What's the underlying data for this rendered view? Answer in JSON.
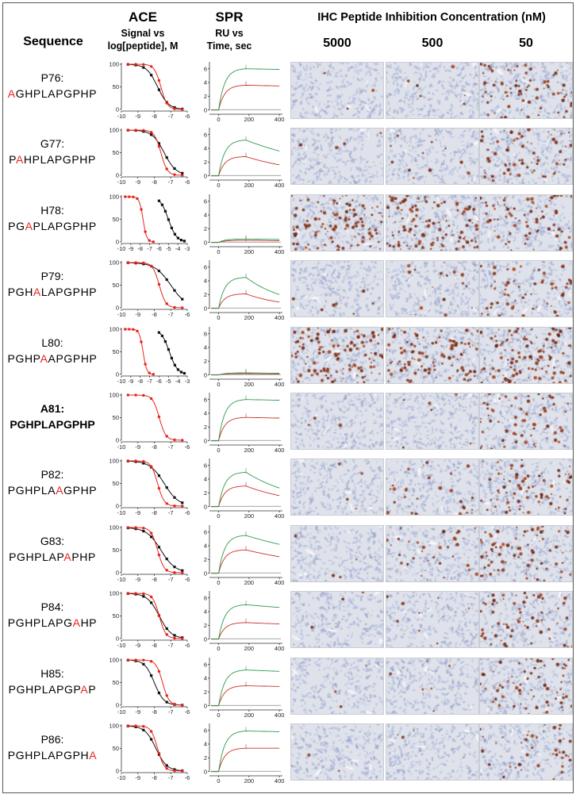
{
  "headers": {
    "sequence": "Sequence",
    "ace_title": "ACE",
    "ace_sub1": "Signal vs",
    "ace_sub2": "log[peptide], M",
    "spr_title": "SPR",
    "spr_sub1": "RU vs",
    "spr_sub2": "Time, sec",
    "ihc_title": "IHC Peptide Inhibition Concentration (nM)",
    "concentrations": [
      "5000",
      "500",
      "50"
    ]
  },
  "rows": [
    {
      "name": "P76:",
      "pre": "",
      "mut": "A",
      "post": "GHPLAPGPHP",
      "bold": false
    },
    {
      "name": "G77:",
      "pre": "P",
      "mut": "A",
      "post": "HPLAPGPHP",
      "bold": false
    },
    {
      "name": "H78:",
      "pre": "PG",
      "mut": "A",
      "post": "PLAPGPHP",
      "bold": false
    },
    {
      "name": "P79:",
      "pre": "PGH",
      "mut": "A",
      "post": "LAPGPHP",
      "bold": false
    },
    {
      "name": "L80:",
      "pre": "PGHP",
      "mut": "A",
      "post": "APGPHP",
      "bold": false
    },
    {
      "name": "A81:",
      "pre": "PGHPLAPGPHP",
      "mut": "",
      "post": "",
      "bold": true
    },
    {
      "name": "P82:",
      "pre": "PGHPLA",
      "mut": "A",
      "post": "GPHP",
      "bold": false
    },
    {
      "name": "G83:",
      "pre": "PGHPLAP",
      "mut": "A",
      "post": "PHP",
      "bold": false
    },
    {
      "name": "P84:",
      "pre": "PGHPLAPG",
      "mut": "A",
      "post": "HP",
      "bold": false
    },
    {
      "name": "H85:",
      "pre": "PGHPLAPGP",
      "mut": "A",
      "post": "P",
      "bold": false
    },
    {
      "name": "P86:",
      "pre": "PGHPLAPGPH",
      "mut": "A",
      "post": "",
      "bold": false
    }
  ],
  "chart_data": {
    "ace": {
      "type": "line",
      "ylim": [
        0,
        100
      ],
      "yticks": [
        0,
        50,
        100
      ],
      "xlim_default": [
        -10,
        -6
      ],
      "xticks_default": [
        -10,
        -9,
        -8,
        -7,
        -6
      ],
      "xlim_wide": [
        -10,
        -3
      ],
      "xticks_wide": [
        -10,
        -9,
        -8,
        -7,
        -6,
        -5,
        -4,
        -3
      ],
      "series_colors": {
        "reference": "#e8241c",
        "variant": "#111111"
      },
      "rows": [
        {
          "wide": false,
          "ref_ic50": -7.6,
          "var_ic50": -7.8,
          "var_hill": 1.3
        },
        {
          "wide": false,
          "ref_ic50": -7.6,
          "var_ic50": -7.4,
          "var_hill": 1.2
        },
        {
          "wide": true,
          "ref_ic50": -7.7,
          "var_ic50": -5.0,
          "var_hill": 1.0
        },
        {
          "wide": false,
          "ref_ic50": -7.7,
          "var_ic50": -7.0,
          "var_hill": 0.9
        },
        {
          "wide": true,
          "ref_ic50": -7.7,
          "var_ic50": -4.9,
          "var_hill": 1.0
        },
        {
          "wide": false,
          "ref_ic50": -7.7,
          "var_ic50": null,
          "var_hill": 1.0
        },
        {
          "wide": false,
          "ref_ic50": -7.8,
          "var_ic50": -7.4,
          "var_hill": 1.0
        },
        {
          "wide": false,
          "ref_ic50": -7.8,
          "var_ic50": -7.6,
          "var_hill": 1.0
        },
        {
          "wide": false,
          "ref_ic50": -7.7,
          "var_ic50": -7.7,
          "var_hill": 1.2
        },
        {
          "wide": false,
          "ref_ic50": -7.5,
          "var_ic50": -8.0,
          "var_hill": 1.5
        },
        {
          "wide": false,
          "ref_ic50": -7.8,
          "var_ic50": -7.9,
          "var_hill": 1.3
        }
      ]
    },
    "spr": {
      "type": "line",
      "xlim": [
        -60,
        420
      ],
      "xticks": [
        0,
        200,
        400
      ],
      "ylim": [
        -0.5,
        7
      ],
      "yticks": [
        0,
        2,
        4,
        6
      ],
      "injection_end_sec": 180,
      "series_colors": {
        "high": "#2e9a4a",
        "low": "#c8322a",
        "baseline": "#888888"
      },
      "rows": [
        {
          "high_max": 6.0,
          "low_max": 3.6,
          "high_end": 5.9,
          "low_end": 3.5
        },
        {
          "high_max": 5.2,
          "low_max": 2.8,
          "high_end": 3.6,
          "low_end": 1.6
        },
        {
          "high_max": 0.5,
          "low_max": 0.3,
          "high_end": 0.45,
          "low_end": 0.25
        },
        {
          "high_max": 4.5,
          "low_max": 2.1,
          "high_end": 2.0,
          "low_end": 0.9
        },
        {
          "high_max": 0.3,
          "low_max": 0.2,
          "high_end": 0.25,
          "low_end": 0.15
        },
        {
          "high_max": 6.0,
          "low_max": 3.4,
          "high_end": 5.9,
          "low_end": 3.3
        },
        {
          "high_max": 5.0,
          "low_max": 3.0,
          "high_end": 2.7,
          "low_end": 1.6
        },
        {
          "high_max": 5.5,
          "low_max": 3.4,
          "high_end": 4.2,
          "low_end": 2.4
        },
        {
          "high_max": 5.0,
          "low_max": 2.4,
          "high_end": 4.6,
          "low_end": 2.2
        },
        {
          "high_max": 5.2,
          "low_max": 2.9,
          "high_end": 5.0,
          "low_end": 2.8
        },
        {
          "high_max": 5.9,
          "low_max": 3.4,
          "high_end": 5.8,
          "low_end": 3.4
        }
      ]
    },
    "ihc_staining_density": [
      [
        0.02,
        0.04,
        0.55
      ],
      [
        0.03,
        0.08,
        0.5
      ],
      [
        0.85,
        0.85,
        0.55
      ],
      [
        0.06,
        0.12,
        0.45
      ],
      [
        0.85,
        0.82,
        0.85
      ],
      [
        0.02,
        0.04,
        0.45
      ],
      [
        0.03,
        0.2,
        0.55
      ],
      [
        0.03,
        0.22,
        0.55
      ],
      [
        0.02,
        0.06,
        0.5
      ],
      [
        0.02,
        0.04,
        0.48
      ],
      [
        0.02,
        0.03,
        0.3
      ]
    ]
  }
}
